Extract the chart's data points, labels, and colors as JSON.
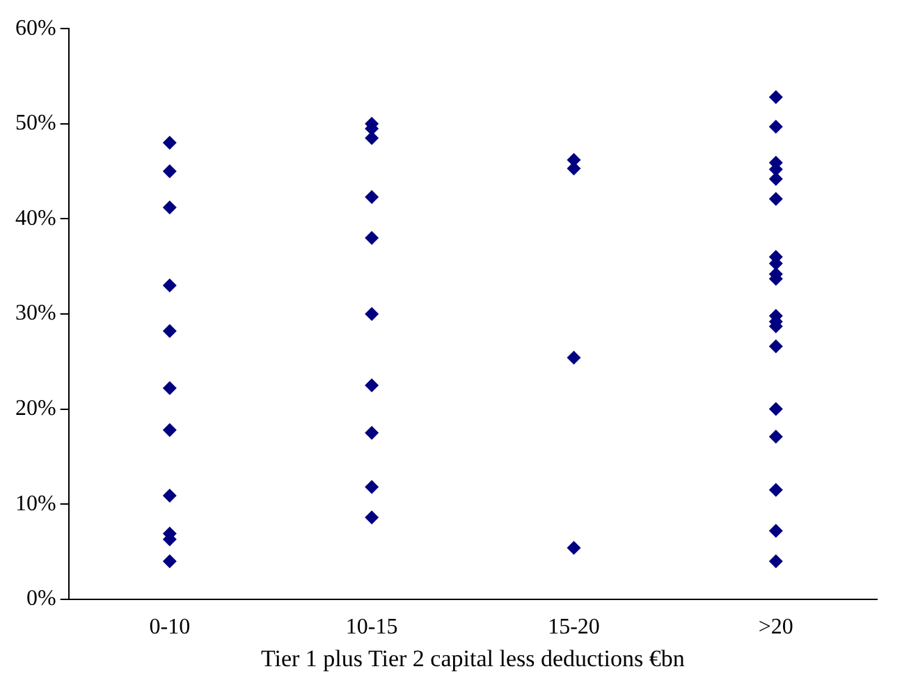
{
  "chart_data": {
    "type": "scatter",
    "xlabel": "Tier 1 plus Tier 2 capital less deductions €bn",
    "categories": [
      "0-10",
      "10-15",
      "15-20",
      ">20"
    ],
    "series": [
      {
        "color": "#000080",
        "x": [
          "0-10",
          "0-10",
          "0-10",
          "0-10",
          "0-10",
          "0-10",
          "0-10",
          "0-10",
          "0-10",
          "0-10",
          "0-10",
          "10-15",
          "10-15",
          "10-15",
          "10-15",
          "10-15",
          "10-15",
          "10-15",
          "10-15",
          "10-15",
          "10-15",
          "15-20",
          "15-20",
          "15-20",
          "15-20",
          ">20",
          ">20",
          ">20",
          ">20",
          ">20",
          ">20",
          ">20",
          ">20",
          ">20",
          ">20",
          ">20",
          ">20",
          ">20",
          ">20",
          ">20",
          ">20",
          ">20",
          ">20",
          ">20"
        ],
        "values": [
          48,
          45,
          41.2,
          33,
          28.2,
          22.2,
          17.8,
          10.9,
          6.9,
          6.3,
          4,
          50,
          49.5,
          48.5,
          42.3,
          38,
          30,
          22.5,
          17.5,
          11.8,
          8.6,
          46.2,
          45.3,
          25.4,
          5.4,
          52.8,
          49.7,
          45.9,
          45.2,
          44.2,
          42.1,
          36,
          35.3,
          34.2,
          33.7,
          29.8,
          29.2,
          28.7,
          26.6,
          20,
          17.1,
          11.5,
          7.2,
          4
        ]
      }
    ],
    "ylim": [
      0,
      60
    ],
    "yticks": [
      {
        "value": 0,
        "label": "0%"
      },
      {
        "value": 10,
        "label": "10%"
      },
      {
        "value": 20,
        "label": "20%"
      },
      {
        "value": 30,
        "label": "30%"
      },
      {
        "value": 40,
        "label": "40%"
      },
      {
        "value": 50,
        "label": "50%"
      },
      {
        "value": 60,
        "label": "60%"
      }
    ],
    "grid": false,
    "legend": false,
    "marker": "diamond"
  }
}
